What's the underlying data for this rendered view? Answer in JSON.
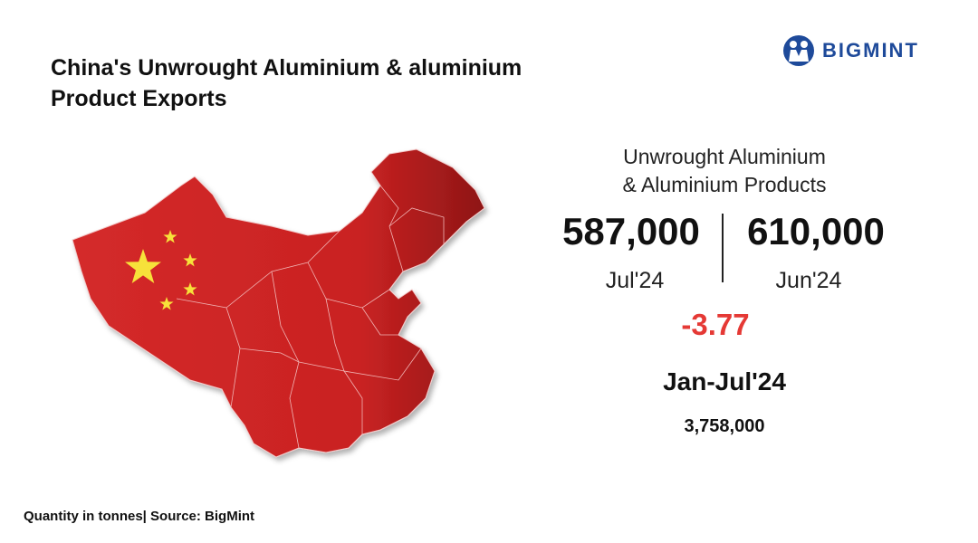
{
  "header": {
    "title_lines": [
      "China's Unwrought Aluminium & aluminium",
      "Product Exports"
    ],
    "logo": "BIGMINT"
  },
  "stats": {
    "label_lines": [
      "Unwrought Aluminium",
      "& Aluminium Products"
    ],
    "current": {
      "value": "587,000",
      "period": "Jul'24"
    },
    "previous": {
      "value": "610,000",
      "period": "Jun'24"
    },
    "change": "-3.77",
    "ytd": {
      "period": "Jan-Jul'24",
      "value": "3,758,000"
    }
  },
  "footer": {
    "note": "Quantity in tonnes| Source: BigMint"
  }
}
